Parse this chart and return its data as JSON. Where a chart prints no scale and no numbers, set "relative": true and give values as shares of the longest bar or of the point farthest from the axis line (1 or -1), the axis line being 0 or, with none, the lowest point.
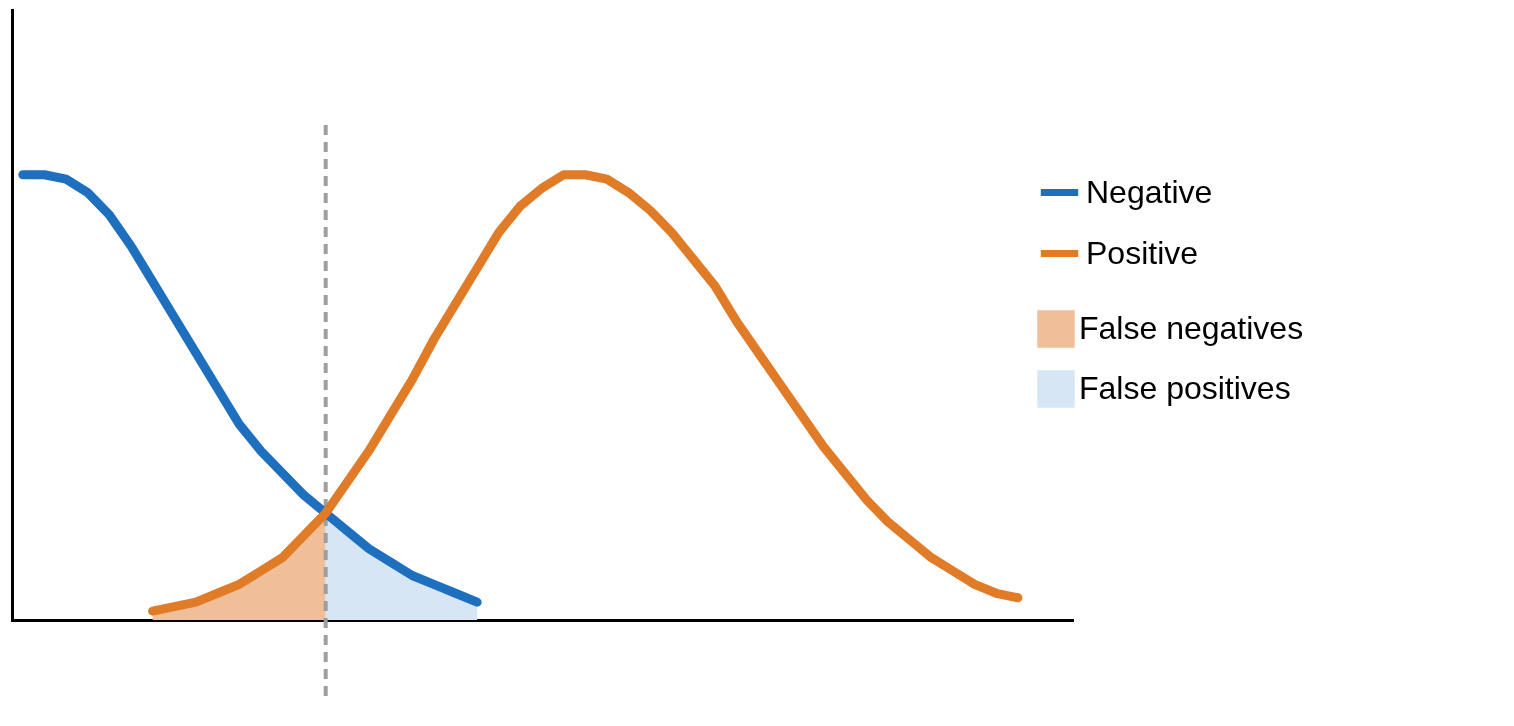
{
  "chart_data": {
    "type": "line",
    "relative": true,
    "legend": "right",
    "line_style": "solid",
    "marker": "none",
    "categories": [
      null,
      null,
      null,
      null,
      null,
      null,
      null,
      null,
      null,
      null,
      null,
      null,
      null,
      null,
      null,
      null,
      null,
      null,
      null,
      null,
      null,
      null,
      null,
      null,
      null,
      null,
      null,
      null,
      null,
      null,
      null,
      null,
      null,
      null,
      null,
      null,
      null,
      null,
      null,
      null,
      null,
      null,
      null,
      null,
      null,
      null,
      null,
      null,
      null
    ],
    "series": [
      {
        "name": "False negatives",
        "type": "area",
        "color": "#f0bf99",
        "values": [
          null,
          null,
          null,
          null,
          null,
          null,
          0.02,
          0.03,
          0.04,
          0.06,
          0.08,
          0.11,
          0.14,
          0.19,
          0.24,
          null,
          null,
          null,
          null,
          null,
          null,
          null,
          null,
          null,
          null,
          null,
          null,
          null,
          null,
          null,
          null,
          null,
          null,
          null,
          null,
          null,
          null,
          null,
          null,
          null,
          null,
          null,
          null,
          null,
          null,
          null,
          null,
          null,
          null
        ]
      },
      {
        "name": "False positives",
        "type": "area",
        "color": "#d6e6f5",
        "values": [
          null,
          null,
          null,
          null,
          null,
          null,
          null,
          null,
          null,
          null,
          null,
          null,
          null,
          null,
          0.24,
          0.2,
          0.16,
          0.13,
          0.1,
          0.08,
          0.06,
          0.04,
          null,
          null,
          null,
          null,
          null,
          null,
          null,
          null,
          null,
          null,
          null,
          null,
          null,
          null,
          null,
          null,
          null,
          null,
          null,
          null,
          null,
          null,
          null,
          null,
          null,
          null,
          null
        ]
      },
      {
        "name": "Negative",
        "color": "#1f6fbf",
        "values": [
          1.0,
          1.0,
          0.99,
          0.96,
          0.91,
          0.84,
          0.76,
          0.68,
          0.6,
          0.52,
          0.44,
          0.38,
          0.33,
          0.28,
          0.24,
          0.2,
          0.16,
          0.13,
          0.1,
          0.08,
          0.06,
          0.04,
          null,
          null,
          null,
          null,
          null,
          null,
          null,
          null,
          null,
          null,
          null,
          null,
          null,
          null,
          null,
          null,
          null,
          null,
          null,
          null,
          null,
          null,
          null,
          null,
          null,
          null,
          null
        ]
      },
      {
        "name": "Positive",
        "color": "#e07b28",
        "values": [
          null,
          null,
          null,
          null,
          null,
          null,
          0.02,
          0.03,
          0.04,
          0.06,
          0.08,
          0.11,
          0.14,
          0.19,
          0.24,
          0.31,
          0.38,
          0.46,
          0.54,
          0.63,
          0.71,
          0.79,
          0.87,
          0.93,
          0.97,
          1.0,
          1.0,
          0.99,
          0.96,
          0.92,
          0.87,
          0.81,
          0.75,
          0.67,
          0.6,
          0.53,
          0.46,
          0.39,
          0.33,
          0.27,
          0.22,
          0.18,
          0.14,
          0.11,
          0.08,
          0.06,
          0.05,
          null,
          null
        ]
      }
    ]
  }
}
